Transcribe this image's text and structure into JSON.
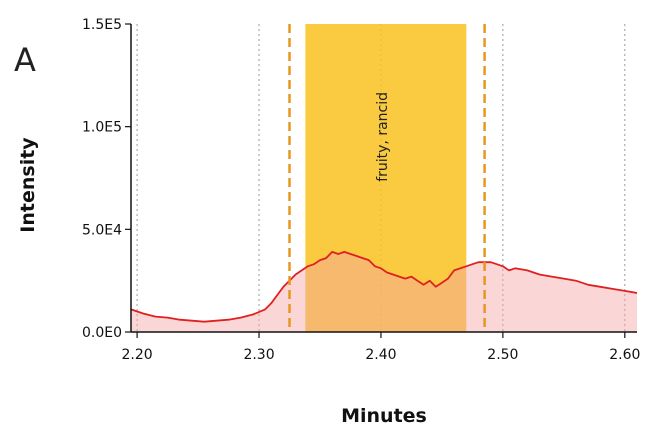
{
  "panel_label": "A",
  "chart_data": {
    "type": "area",
    "title": "",
    "xlabel": "Minutes",
    "ylabel": "Intensity",
    "xlim": [
      2.195,
      2.61
    ],
    "ylim": [
      0,
      150000
    ],
    "x_ticks": [
      2.2,
      2.3,
      2.4,
      2.5,
      2.6
    ],
    "x_tick_labels": [
      "2.20",
      "2.30",
      "2.40",
      "2.50",
      "2.60"
    ],
    "y_ticks": [
      0,
      50000,
      100000,
      150000
    ],
    "y_tick_labels": [
      "0.0E0",
      "5.0E4",
      "1.0E5",
      "1.5E5"
    ],
    "grid": "vertical dotted lines at x ticks",
    "series": [
      {
        "color": "#e02020",
        "fill": "#f9cccc",
        "x": [
          2.195,
          2.205,
          2.215,
          2.225,
          2.235,
          2.245,
          2.255,
          2.265,
          2.275,
          2.285,
          2.295,
          2.305,
          2.31,
          2.315,
          2.32,
          2.325,
          2.33,
          2.335,
          2.34,
          2.345,
          2.35,
          2.355,
          2.36,
          2.365,
          2.37,
          2.375,
          2.38,
          2.385,
          2.39,
          2.395,
          2.4,
          2.405,
          2.41,
          2.415,
          2.42,
          2.425,
          2.43,
          2.435,
          2.44,
          2.445,
          2.45,
          2.455,
          2.46,
          2.465,
          2.47,
          2.475,
          2.48,
          2.485,
          2.49,
          2.495,
          2.5,
          2.505,
          2.51,
          2.52,
          2.53,
          2.54,
          2.55,
          2.56,
          2.57,
          2.58,
          2.59,
          2.6,
          2.61
        ],
        "y": [
          11000,
          9000,
          7500,
          7000,
          6000,
          5500,
          5000,
          5500,
          6000,
          7000,
          8500,
          11000,
          14000,
          18000,
          22000,
          25000,
          28000,
          30000,
          32000,
          33000,
          35000,
          36000,
          39000,
          38000,
          39000,
          38000,
          37000,
          36000,
          35000,
          32000,
          31000,
          29000,
          28000,
          27000,
          26000,
          27000,
          25000,
          23000,
          25000,
          22000,
          24000,
          26000,
          30000,
          31000,
          32000,
          33000,
          34000,
          34000,
          34000,
          33000,
          32000,
          30000,
          31000,
          30000,
          28000,
          27000,
          26000,
          25000,
          23000,
          22000,
          21000,
          20000,
          19000
        ]
      }
    ],
    "annotations": [
      {
        "text": "fruity, rancid",
        "x": 2.405,
        "y": 95000,
        "rotation": -90
      }
    ],
    "highlight_region": {
      "x_start": 2.338,
      "x_end": 2.47,
      "color": "#f9c21f"
    },
    "marker_lines": [
      {
        "x": 2.325,
        "color": "#e8971e",
        "style": "dashed"
      },
      {
        "x": 2.485,
        "color": "#e8971e",
        "style": "dashed"
      }
    ]
  }
}
